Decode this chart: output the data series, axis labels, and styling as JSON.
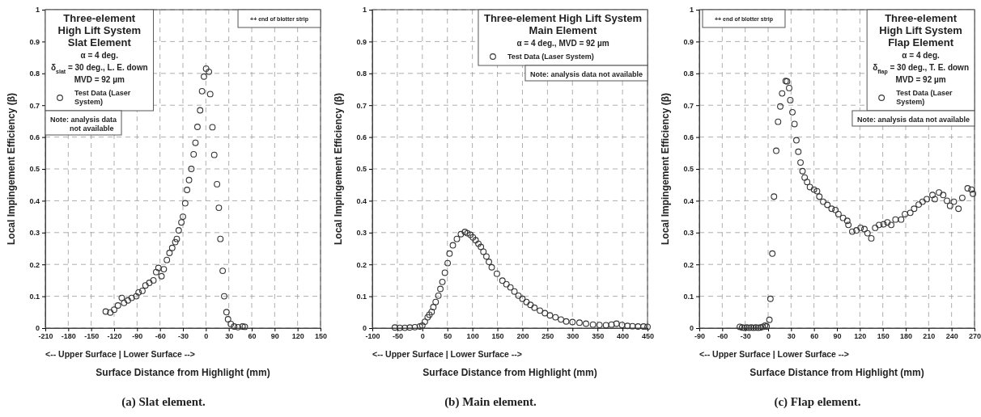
{
  "chart_data": [
    {
      "type": "scatter",
      "title": "Three-element\nHigh Lift System\nSlat Element",
      "subtitle": "α = 4 deg.\nδ$_{slat}$ = 30 deg., L. E. down\nMVD = 92 µm",
      "xlabel": "<-- Upper Surface  |  Lower Surface -->\nSurface Distance from Highlight (mm)",
      "ylabel": "Local Impingement Efficiency (β)",
      "x": [
        -131,
        -125,
        -120,
        -115,
        -110,
        -107,
        -102,
        -97,
        -91,
        -88,
        -83,
        -79,
        -74,
        -68.6,
        -65,
        -62,
        -58,
        -55,
        -51,
        -47.6,
        -44,
        -40,
        -38,
        -35.5,
        -32,
        -30,
        -27,
        -24.6,
        -22,
        -19,
        -16,
        -13.6,
        -11,
        -7.5,
        -5,
        -2.5,
        0.3,
        4,
        5.7,
        8.6,
        11,
        14.6,
        17,
        19,
        22,
        24,
        27,
        29,
        32.7,
        37,
        42,
        48,
        51
      ],
      "series": [
        {
          "name": "Test Data (Laser System)",
          "color": "#333333",
          "values": [
            0.052,
            0.049,
            0.058,
            0.071,
            0.095,
            0.079,
            0.087,
            0.095,
            0.1,
            0.112,
            0.117,
            0.134,
            0.142,
            0.15,
            0.176,
            0.189,
            0.163,
            0.185,
            0.214,
            0.236,
            0.252,
            0.27,
            0.28,
            0.307,
            0.332,
            0.35,
            0.392,
            0.434,
            0.465,
            0.5,
            0.546,
            0.582,
            0.632,
            0.684,
            0.744,
            0.79,
            0.815,
            0.805,
            0.735,
            0.631,
            0.544,
            0.452,
            0.378,
            0.28,
            0.18,
            0.1,
            0.05,
            0.028,
            0.013,
            0.005,
            0.003,
            0.005,
            0.004
          ]
        }
      ],
      "xlim": [
        -210,
        150
      ],
      "xticks": [
        -210,
        -180,
        -150,
        -120,
        -90,
        -60,
        -30,
        0,
        30,
        60,
        90,
        120,
        150
      ],
      "ylim": [
        0,
        1
      ],
      "yticks": [
        0,
        0.1,
        0.2,
        0.3,
        0.4,
        0.5,
        0.6,
        0.7,
        0.8,
        0.9,
        1
      ],
      "grid": true,
      "legend": "top left",
      "marker": "circle",
      "annotations": [
        "Note: analysis data\nnot available",
        "++ end of blotter strip",
        "(a) Slat element."
      ]
    },
    {
      "type": "scatter",
      "title": "Three-element High Lift System\nMain Element",
      "subtitle": "α = 4 deg., MVD = 92 µm",
      "xlabel": "<-- Upper Surface  |  Lower Surface -->\nSurface Distance from Highlight (mm)",
      "ylabel": "Local Impingement Efficiency (β)",
      "x": [
        -55,
        -45,
        -35,
        -25,
        -15,
        -5,
        0,
        5,
        10.6,
        14,
        18.6,
        22,
        26.6,
        32,
        36,
        40,
        45,
        50.6,
        54.3,
        61,
        69,
        77,
        85,
        90,
        96,
        101,
        106.5,
        112,
        117,
        122,
        128,
        133,
        138.6,
        149,
        160,
        168,
        176,
        184,
        192,
        200,
        208,
        216,
        224,
        235,
        245,
        255,
        266,
        277,
        287.5,
        300,
        314,
        327,
        341,
        354,
        367,
        378,
        388,
        399,
        410,
        420,
        431,
        442,
        450
      ],
      "series": [
        {
          "name": "Test Data (Laser System)",
          "color": "#333333",
          "values": [
            0.002,
            0.001,
            0.001,
            0.002,
            0.003,
            0.005,
            0.008,
            0.02,
            0.034,
            0.042,
            0.051,
            0.066,
            0.082,
            0.102,
            0.123,
            0.145,
            0.174,
            0.204,
            0.234,
            0.26,
            0.28,
            0.295,
            0.302,
            0.298,
            0.293,
            0.285,
            0.276,
            0.265,
            0.255,
            0.24,
            0.225,
            0.208,
            0.191,
            0.171,
            0.149,
            0.138,
            0.128,
            0.115,
            0.102,
            0.092,
            0.082,
            0.073,
            0.064,
            0.055,
            0.047,
            0.04,
            0.034,
            0.027,
            0.021,
            0.019,
            0.017,
            0.014,
            0.011,
            0.01,
            0.009,
            0.011,
            0.014,
            0.01,
            0.007,
            0.006,
            0.005,
            0.005,
            0.004
          ]
        }
      ],
      "xlim": [
        -100,
        450
      ],
      "xticks": [
        -100,
        -50,
        0,
        50,
        100,
        150,
        200,
        250,
        300,
        350,
        400,
        450
      ],
      "ylim": [
        0,
        1
      ],
      "yticks": [
        0,
        0.1,
        0.2,
        0.3,
        0.4,
        0.5,
        0.6,
        0.7,
        0.8,
        0.9,
        1
      ],
      "grid": true,
      "legend": "top right",
      "marker": "circle",
      "annotations": [
        "Note: analysis data not available",
        "(b) Main element."
      ]
    },
    {
      "type": "scatter",
      "title": "Three-element\nHigh Lift System\nFlap Element",
      "subtitle": "α = 4 deg.\nδ$_{flap}$ = 30 deg., T. E. down\nMVD = 92 µm",
      "xlabel": "<-- Upper Surface  |  Lower Surface -->\nSurface Distance from Highlight (mm)",
      "ylabel": "Local Impingement Efficiency (β)",
      "x": [
        -37,
        -34,
        -31,
        -28,
        -25,
        -22,
        -19,
        -16,
        -13,
        -10,
        -7,
        -4,
        -2,
        1.7,
        3,
        5.5,
        7.7,
        10.6,
        13,
        15.9,
        18.3,
        23,
        24.8,
        27.5,
        29,
        31.8,
        34.5,
        37,
        39.5,
        42.4,
        45,
        47.8,
        51,
        54.7,
        60,
        64,
        67,
        72,
        77.5,
        83,
        88,
        92,
        98,
        103.5,
        105,
        110,
        115.6,
        121,
        126,
        130,
        135,
        140,
        145,
        151,
        156,
        161,
        166.6,
        174,
        179,
        186,
        191,
        197,
        202,
        207.6,
        215,
        218,
        223.5,
        229,
        234,
        238,
        243,
        249,
        254,
        261,
        266,
        268
      ],
      "series": [
        {
          "name": "Test Data (Laser System)",
          "color": "#333333",
          "values": [
            0.004,
            0.002,
            0.001,
            0.002,
            0.001,
            0.002,
            0.001,
            0.002,
            0.001,
            0.002,
            0.004,
            0.008,
            0.005,
            0.026,
            0.092,
            0.234,
            0.413,
            0.557,
            0.648,
            0.696,
            0.737,
            0.776,
            0.775,
            0.754,
            0.716,
            0.678,
            0.641,
            0.59,
            0.554,
            0.52,
            0.493,
            0.473,
            0.459,
            0.443,
            0.435,
            0.43,
            0.413,
            0.397,
            0.387,
            0.375,
            0.371,
            0.358,
            0.346,
            0.337,
            0.324,
            0.303,
            0.307,
            0.315,
            0.311,
            0.298,
            0.282,
            0.315,
            0.324,
            0.326,
            0.332,
            0.324,
            0.341,
            0.341,
            0.358,
            0.362,
            0.375,
            0.388,
            0.397,
            0.405,
            0.418,
            0.405,
            0.426,
            0.418,
            0.4,
            0.384,
            0.397,
            0.375,
            0.409,
            0.439,
            0.435,
            0.422
          ]
        }
      ],
      "xlim": [
        -90,
        270
      ],
      "xticks": [
        -90,
        -60,
        -30,
        0,
        30,
        60,
        90,
        120,
        150,
        180,
        210,
        240,
        270
      ],
      "ylim": [
        0,
        1
      ],
      "yticks": [
        0,
        0.1,
        0.2,
        0.3,
        0.4,
        0.5,
        0.6,
        0.7,
        0.8,
        0.9,
        1
      ],
      "grid": true,
      "legend": "top right",
      "marker": "circle",
      "annotations": [
        "Note: analysis data not available",
        "++ end of blotter strip",
        "(c) Flap element."
      ]
    }
  ]
}
